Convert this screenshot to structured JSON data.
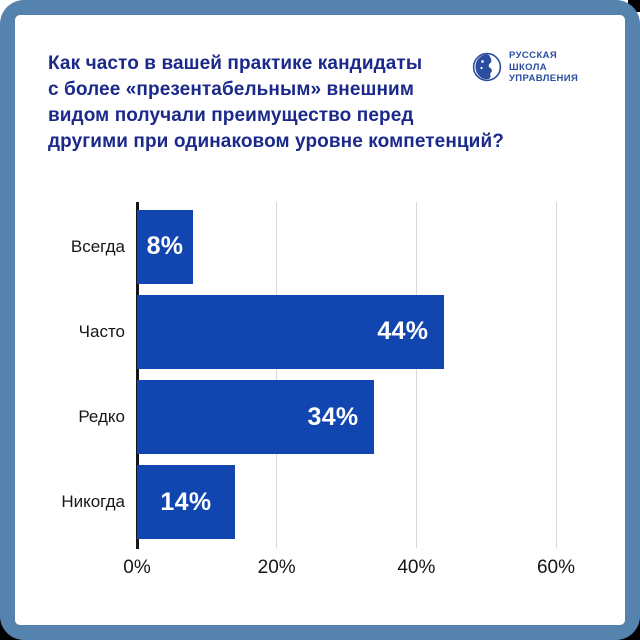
{
  "colors": {
    "frame": "#5583AD",
    "card": "#FFFFFF",
    "bar": "#1146B1",
    "title": "#1B2A8A",
    "logo": "#2A4DA0",
    "text": "#161616",
    "gridline": "#D8D8D8",
    "value_label": "#FFFFFF"
  },
  "header": {
    "title": "Как часто в вашей практике кандидаты\nс более «презентабельным» внешним\nвидом получали преимущество перед\nдругими при одинаковом уровне компетенций?",
    "logo_text": "РУССКАЯ\nШКОЛА\nУПРАВЛЕНИЯ"
  },
  "chart_data": {
    "type": "bar",
    "orientation": "horizontal",
    "title": "Как часто в вашей практике кандидаты с более «презентабельным» внешним видом получали преимущество перед другими при одинаковом уровне компетенций?",
    "categories": [
      "Всегда",
      "Часто",
      "Редко",
      "Никогда"
    ],
    "values": [
      8,
      44,
      34,
      14
    ],
    "value_labels": [
      "8%",
      "44%",
      "34%",
      "14%"
    ],
    "x_tick_labels": [
      "0%",
      "20%",
      "40%",
      "60%"
    ],
    "x_tick_values": [
      0,
      20,
      40,
      60
    ],
    "xlim": [
      0,
      60
    ],
    "grid": true,
    "legend": false
  }
}
